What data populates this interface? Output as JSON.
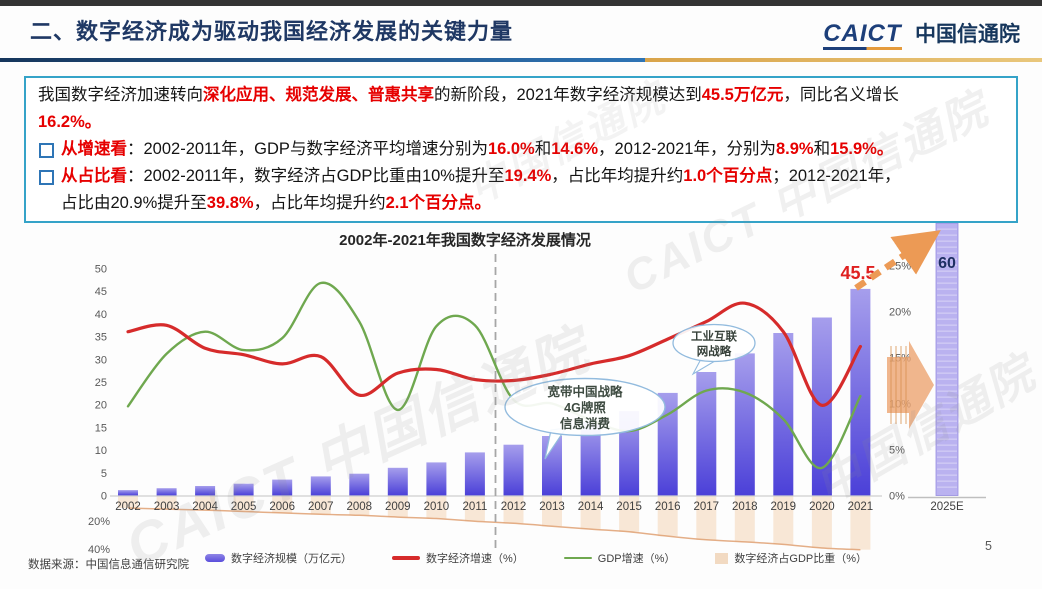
{
  "header": {
    "title": "二、数字经济成为驱动我国经济发展的关键力量",
    "logo_caict": "CAICT",
    "logo_cn": "中国信通院"
  },
  "watermark_full": "CAICT 中国信通院",
  "watermark_short": "中国信通院",
  "infobox": {
    "border_color": "#35A3C8",
    "lines": [
      {
        "segments": [
          {
            "t": "我国数字经济加速转向"
          },
          {
            "t": "深化应用、规范发展、普惠共享",
            "red": true
          },
          {
            "t": "的新阶段，2021年数字经济规模达到"
          },
          {
            "t": "45.5万亿元",
            "red": true
          },
          {
            "t": "，同比名义增长"
          }
        ]
      },
      {
        "segments": [
          {
            "t": "16.2%。",
            "red": true
          }
        ]
      },
      {
        "segments": [
          {
            "t": "从增速看",
            "red": true
          },
          {
            "t": "：2002-2011年，GDP与数字经济平均增速分别为"
          },
          {
            "t": "16.0%",
            "red": true
          },
          {
            "t": "和"
          },
          {
            "t": "14.6%",
            "red": true
          },
          {
            "t": "，2012-2021年，分别为"
          },
          {
            "t": "8.9%",
            "red": true
          },
          {
            "t": "和"
          },
          {
            "t": "15.9%。",
            "red": true
          }
        ]
      },
      {
        "segments": [
          {
            "t": "从占比看",
            "red": true
          },
          {
            "t": "：2002-2011年，数字经济占GDP比重由10%提升至"
          },
          {
            "t": "19.4%",
            "red": true
          },
          {
            "t": "，占比年均提升约"
          },
          {
            "t": "1.0个百分点",
            "red": true
          },
          {
            "t": "；2012-2021年，"
          }
        ]
      },
      {
        "segments": [
          {
            "t": "占比由20.9%提升至"
          },
          {
            "t": "39.8%",
            "red": true
          },
          {
            "t": "，占比年均提升约"
          },
          {
            "t": "2.1个百分点。",
            "red": true
          }
        ]
      }
    ]
  },
  "chart_data": {
    "type": "bar+line",
    "title": "2002年-2021年我国数字经济发展情况",
    "categories": [
      "2002",
      "2003",
      "2004",
      "2005",
      "2006",
      "2007",
      "2008",
      "2009",
      "2010",
      "2011",
      "2012",
      "2013",
      "2014",
      "2015",
      "2016",
      "2017",
      "2018",
      "2019",
      "2020",
      "2021"
    ],
    "series": [
      {
        "name": "数字经济规模（万亿元）",
        "type": "bar",
        "axis": "left",
        "color_top": "#A69EEC",
        "color_bottom": "#4B40D8",
        "values": [
          1.2,
          1.6,
          2.1,
          2.6,
          3.5,
          4.2,
          4.8,
          6.1,
          7.3,
          9.5,
          11.2,
          13.1,
          16.2,
          18.6,
          22.6,
          27.2,
          31.3,
          35.8,
          39.2,
          45.5
        ]
      },
      {
        "name": "数字经济增速（%）",
        "type": "line",
        "axis": "right",
        "color": "#D62B2B",
        "values": [
          17.8,
          18.5,
          16.0,
          15.3,
          14.3,
          15.1,
          10.9,
          13.3,
          13.7,
          12.6,
          12.5,
          13.2,
          14.3,
          15.2,
          17.0,
          18.9,
          20.9,
          17.8,
          9.8,
          16.2
        ]
      },
      {
        "name": "GDP增速（%）",
        "type": "line",
        "axis": "right",
        "color": "#6FA84F",
        "values": [
          9.7,
          15.4,
          17.8,
          15.8,
          17.1,
          23.1,
          18.9,
          9.3,
          18.4,
          18.5,
          10.4,
          10.0,
          8.2,
          7.0,
          8.8,
          11.4,
          11.2,
          8.3,
          3.0,
          10.8
        ]
      },
      {
        "name": "数字经济占GDP比重（%）",
        "type": "faint-bar-line",
        "axis": "inverted-below",
        "color": "#E8B98C",
        "values": [
          10.0,
          10.8,
          11.5,
          12.5,
          13.5,
          14.5,
          15.2,
          16.5,
          17.5,
          19.4,
          20.9,
          23.0,
          25.1,
          27.0,
          30.1,
          32.7,
          34.2,
          36.0,
          38.6,
          39.8
        ]
      }
    ],
    "left_axis": {
      "min": 0,
      "max": 50,
      "step": 5,
      "below_labels": [
        "20%",
        "40%"
      ]
    },
    "right_axis": {
      "min": 0,
      "max": 25,
      "step": 5,
      "unit": "%"
    },
    "forecast_bar": {
      "label": "2025E",
      "value": 60,
      "value_label": "60"
    },
    "annotations": {
      "peak_value_label": "45.5",
      "bubble_broadband": [
        "宽带中国战略",
        "4G牌照",
        "信息消费"
      ],
      "bubble_industrial": [
        "工业互联",
        "网战略"
      ]
    },
    "legend": [
      {
        "swatch": "bar",
        "label": "数字经济规模（万亿元）"
      },
      {
        "swatch": "line-red",
        "label": "数字经济增速（%）"
      },
      {
        "swatch": "line-green",
        "label": "GDP增速（%）"
      },
      {
        "swatch": "area-faint",
        "label": "数字经济占GDP比重（%）"
      }
    ],
    "grid": false,
    "legend_position": "bottom"
  },
  "footer": {
    "source": "数据来源：中国信息通信研究院",
    "page": "5"
  }
}
